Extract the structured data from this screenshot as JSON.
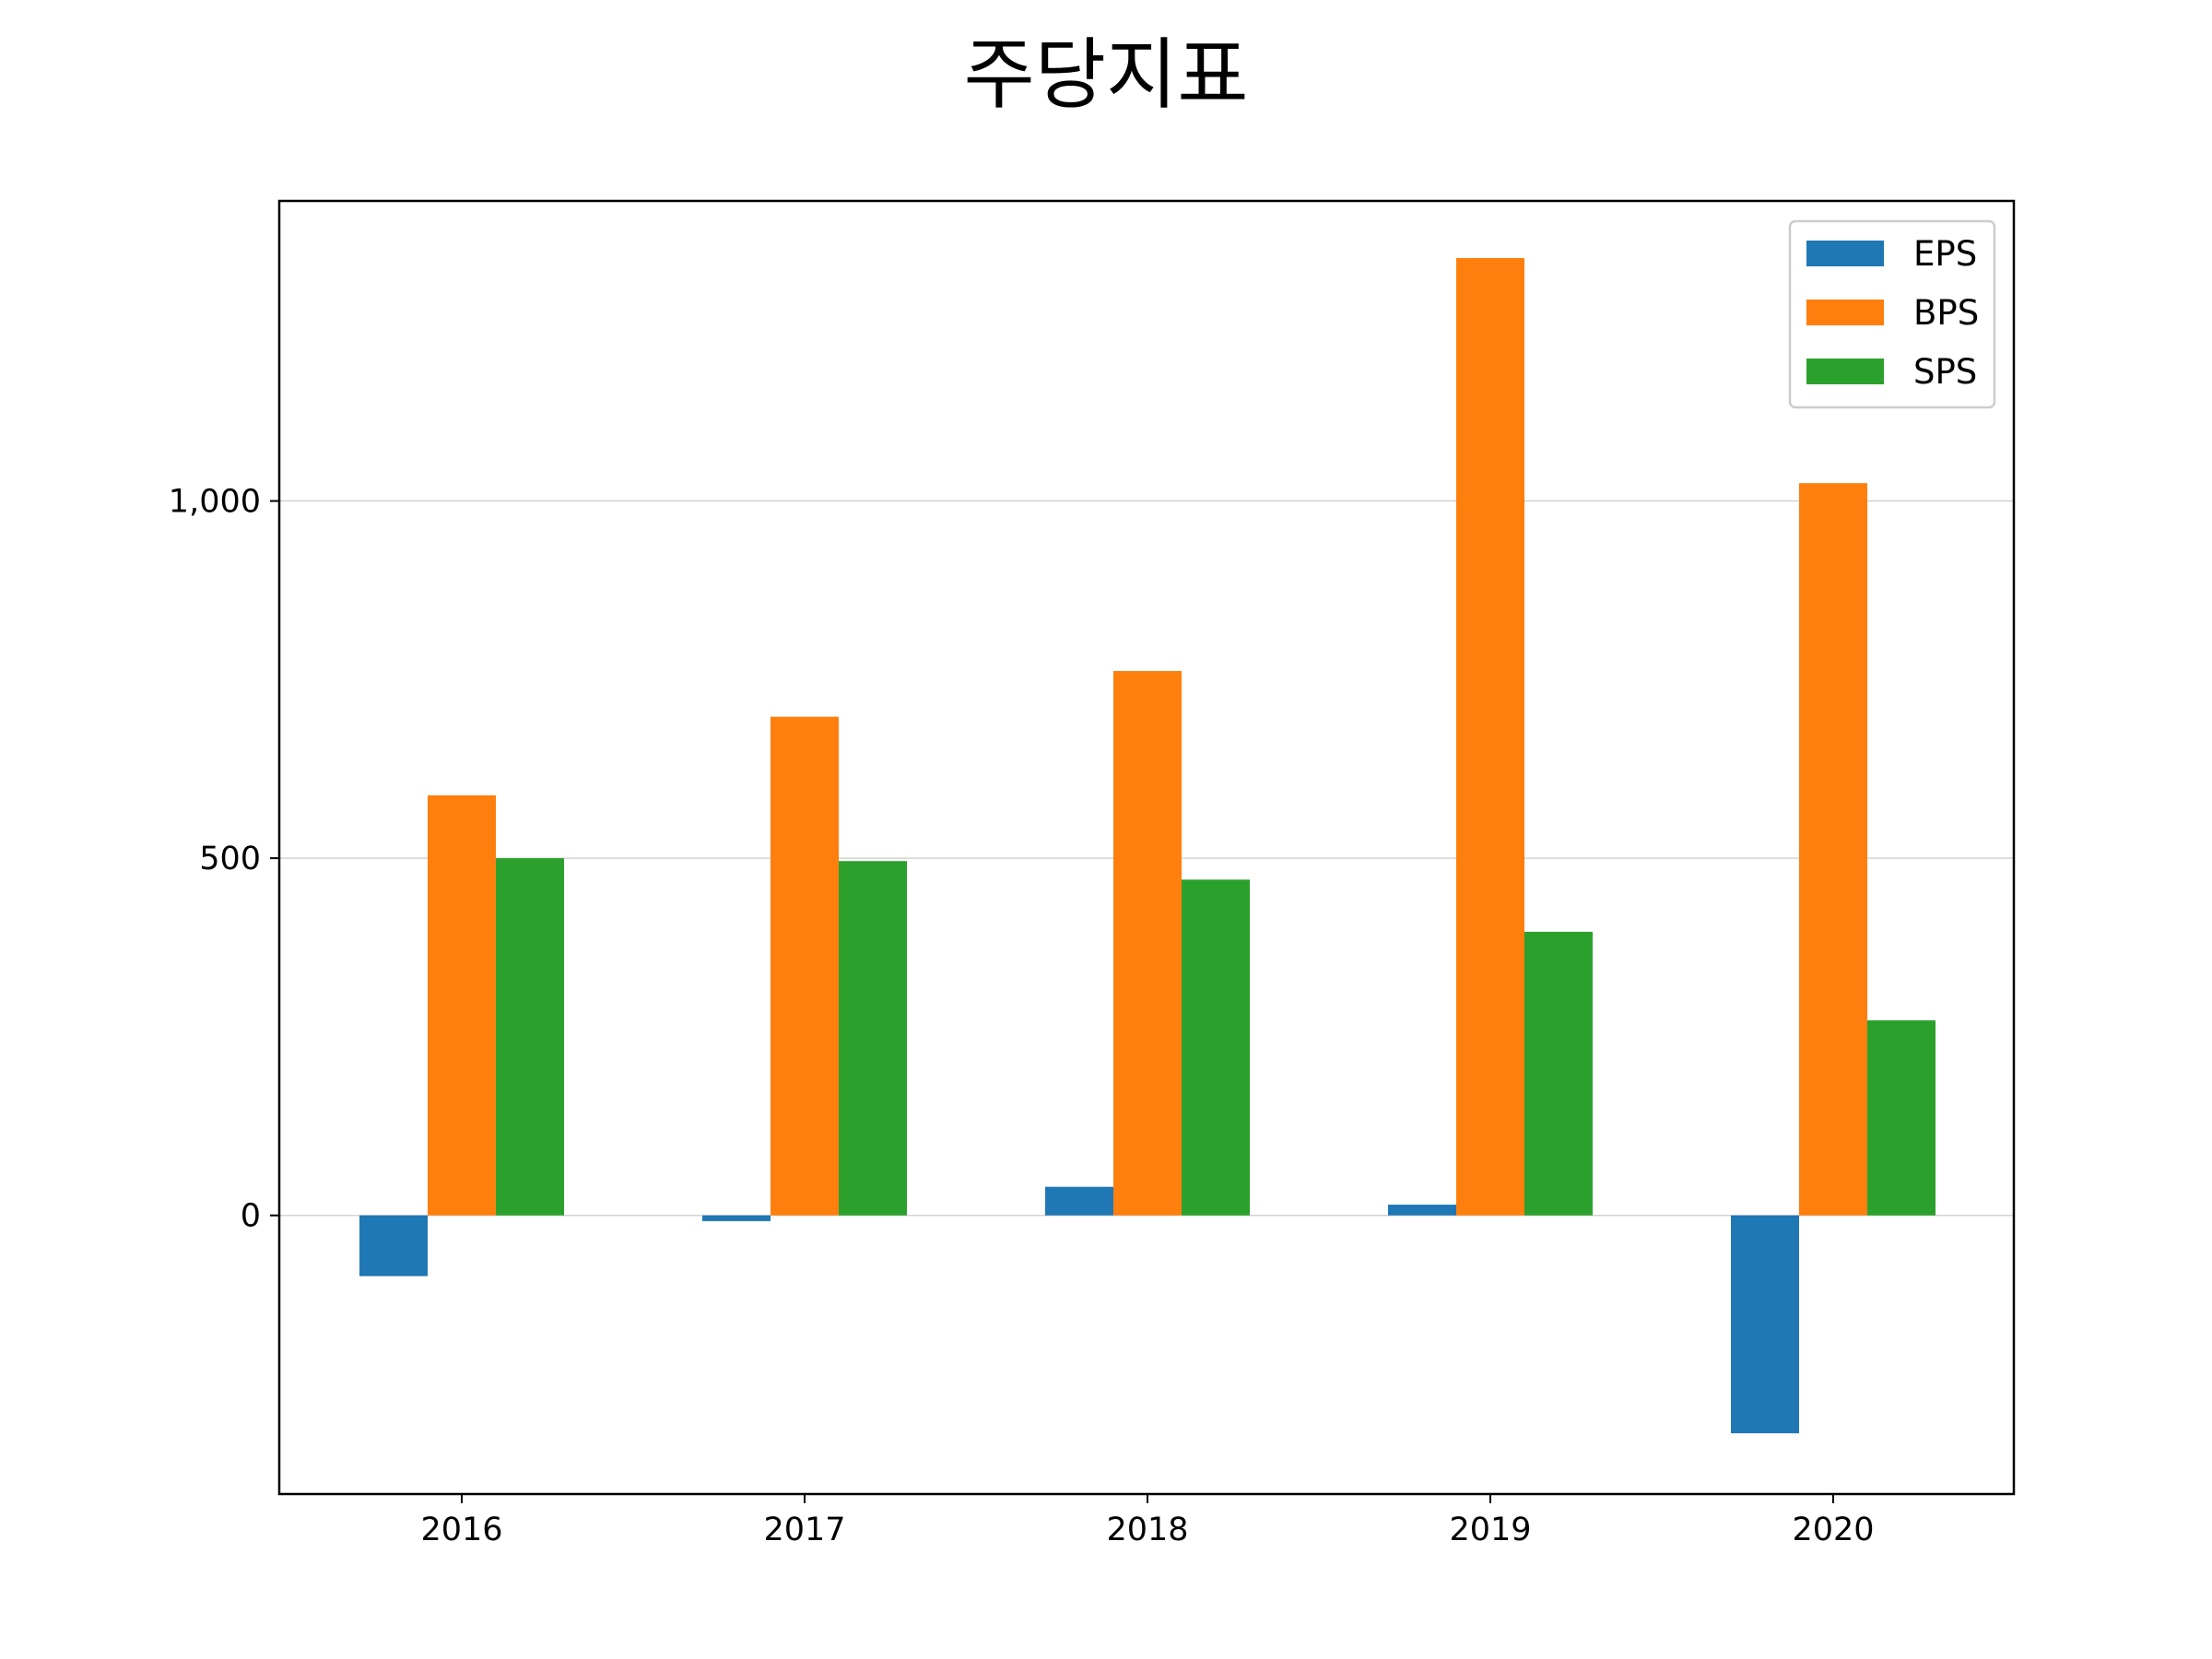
{
  "chart_data": {
    "type": "bar",
    "title": "주당지표",
    "xlabel": "",
    "ylabel": "",
    "categories": [
      "2016",
      "2017",
      "2018",
      "2019",
      "2020"
    ],
    "series": [
      {
        "name": "EPS",
        "color": "#1f77b4",
        "values": [
          -85,
          -8,
          40,
          15,
          -305
        ]
      },
      {
        "name": "BPS",
        "color": "#ff7f0e",
        "values": [
          588,
          698,
          762,
          1340,
          1025
        ]
      },
      {
        "name": "SPS",
        "color": "#2ca02c",
        "values": [
          500,
          496,
          470,
          397,
          273
        ]
      }
    ],
    "ylim": [
      -390,
      1420
    ],
    "yticks": [
      0,
      500,
      1000
    ],
    "ytick_labels": [
      "0",
      "500",
      "1,000"
    ],
    "grid": "horizontal",
    "legend_position": "top-right"
  }
}
